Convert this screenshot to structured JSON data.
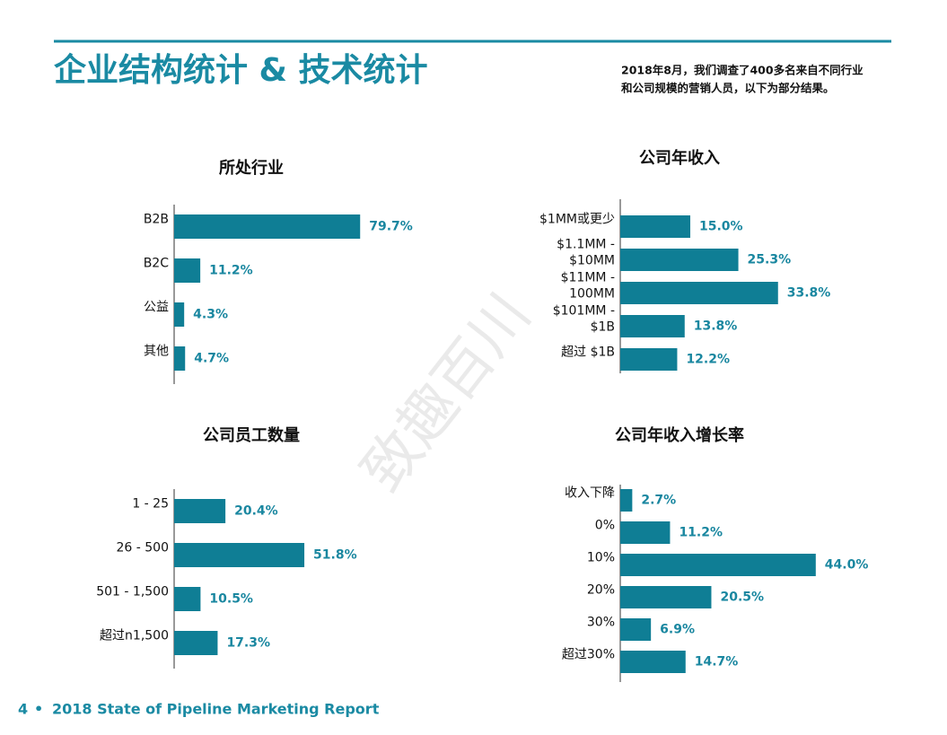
{
  "header": {
    "title": "企业结构统计 & 技术统计",
    "intro": [
      "2018年8月，我们调查了400多名来自不同行业",
      "和公司规模的营销人员，以下为部分结果。"
    ]
  },
  "watermark": "致趣百川",
  "footer": {
    "page": "4",
    "report": "2018 State of Pipeline Marketing Report"
  },
  "chart_data": [
    {
      "type": "bar",
      "orientation": "horizontal",
      "title": "所处行业",
      "color": "#0f7e95",
      "categories": [
        [
          "B2B"
        ],
        [
          "B2C"
        ],
        [
          "公益"
        ],
        [
          "其他"
        ]
      ],
      "values": [
        79.7,
        11.2,
        4.3,
        4.7
      ],
      "value_labels": [
        "79.7%",
        "11.2%",
        "4.3%",
        "4.7%"
      ]
    },
    {
      "type": "bar",
      "orientation": "horizontal",
      "title": "公司年收入",
      "color": "#0f7e95",
      "categories": [
        [
          "$1MM或更少"
        ],
        [
          "$1.1MM -",
          "$10MM"
        ],
        [
          "$11MM -",
          "100MM"
        ],
        [
          "$101MM -",
          "$1B"
        ],
        [
          "超过 $1B"
        ]
      ],
      "values": [
        15.0,
        25.3,
        33.8,
        13.8,
        12.2
      ],
      "value_labels": [
        "15.0%",
        "25.3%",
        "33.8%",
        "13.8%",
        "12.2%"
      ]
    },
    {
      "type": "bar",
      "orientation": "horizontal",
      "title": "公司员工数量",
      "color": "#0f7e95",
      "categories": [
        [
          "1 - 25"
        ],
        [
          "26 - 500"
        ],
        [
          "501 - 1,500"
        ],
        [
          "超过n1,500"
        ]
      ],
      "values": [
        20.4,
        51.8,
        10.5,
        17.3
      ],
      "value_labels": [
        "20.4%",
        "51.8%",
        "10.5%",
        "17.3%"
      ]
    },
    {
      "type": "bar",
      "orientation": "horizontal",
      "title": "公司年收入增长率",
      "color": "#0f7e95",
      "categories": [
        [
          "收入下降"
        ],
        [
          "0%"
        ],
        [
          "10%"
        ],
        [
          "20%"
        ],
        [
          "30%"
        ],
        [
          "超过30%"
        ]
      ],
      "values": [
        2.7,
        11.2,
        44.0,
        20.5,
        6.9,
        14.7
      ],
      "value_labels": [
        "2.7%",
        "11.2%",
        "44.0%",
        "20.5%",
        "6.9%",
        "14.7%"
      ]
    }
  ]
}
